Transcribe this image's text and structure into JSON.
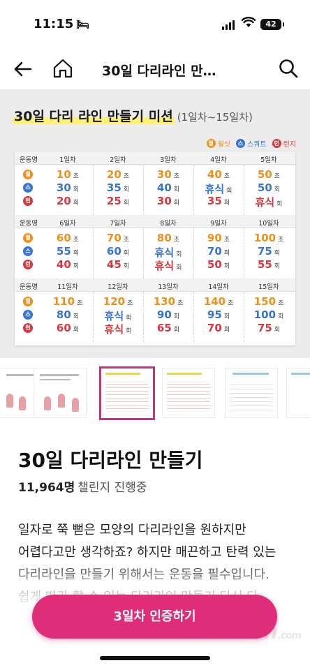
{
  "status_bar": {
    "time": "11:15",
    "battery": "42"
  },
  "nav": {
    "title": "30일 다리라인 만…"
  },
  "banner": {
    "title": "30일 다리 라인 만들기 미션",
    "subtitle": "(1일차~15일차)",
    "legend": [
      {
        "badge": "월",
        "label": "월싯",
        "color": "#f0901c"
      },
      {
        "badge": "스",
        "label": "스쿼트",
        "color": "#3a74d1"
      },
      {
        "badge": "런",
        "label": "런지",
        "color": "#d8383f"
      }
    ],
    "column_label": "운동명",
    "row_badges": [
      "월",
      "스",
      "런"
    ],
    "blocks": [
      {
        "days": [
          {
            "label": "1일차",
            "rows": [
              [
                "10",
                "초"
              ],
              [
                "30",
                "회"
              ],
              [
                "20",
                "회"
              ]
            ]
          },
          {
            "label": "2일차",
            "rows": [
              [
                "20",
                "초"
              ],
              [
                "35",
                "회"
              ],
              [
                "25",
                "회"
              ]
            ]
          },
          {
            "label": "3일차",
            "rows": [
              [
                "30",
                "초"
              ],
              [
                "40",
                "회"
              ],
              [
                "30",
                "회"
              ]
            ]
          },
          {
            "label": "4일차",
            "rows": [
              [
                "40",
                "초"
              ],
              [
                "휴식",
                "회"
              ],
              [
                "35",
                "회"
              ]
            ]
          },
          {
            "label": "5일차",
            "rows": [
              [
                "50",
                "초"
              ],
              [
                "50",
                "회"
              ],
              [
                "휴식",
                "회"
              ]
            ]
          }
        ]
      },
      {
        "days": [
          {
            "label": "6일차",
            "rows": [
              [
                "60",
                "초"
              ],
              [
                "55",
                "회"
              ],
              [
                "40",
                "회"
              ]
            ]
          },
          {
            "label": "7일차",
            "rows": [
              [
                "70",
                "초"
              ],
              [
                "60",
                "회"
              ],
              [
                "45",
                "회"
              ]
            ]
          },
          {
            "label": "8일차",
            "rows": [
              [
                "80",
                "초"
              ],
              [
                "휴식",
                "회"
              ],
              [
                "휴식",
                "회"
              ]
            ]
          },
          {
            "label": "9일차",
            "rows": [
              [
                "90",
                "초"
              ],
              [
                "70",
                "회"
              ],
              [
                "50",
                "회"
              ]
            ]
          },
          {
            "label": "10일차",
            "rows": [
              [
                "100",
                "초"
              ],
              [
                "75",
                "회"
              ],
              [
                "55",
                "회"
              ]
            ]
          }
        ]
      },
      {
        "days": [
          {
            "label": "11일차",
            "rows": [
              [
                "110",
                "초"
              ],
              [
                "80",
                "회"
              ],
              [
                "60",
                "회"
              ]
            ]
          },
          {
            "label": "12일차",
            "rows": [
              [
                "120",
                "초"
              ],
              [
                "휴식",
                "회"
              ],
              [
                "휴식",
                "회"
              ]
            ]
          },
          {
            "label": "13일차",
            "rows": [
              [
                "130",
                "초"
              ],
              [
                "90",
                "회"
              ],
              [
                "65",
                "회"
              ]
            ]
          },
          {
            "label": "14일차",
            "rows": [
              [
                "140",
                "초"
              ],
              [
                "95",
                "회"
              ],
              [
                "70",
                "회"
              ]
            ]
          },
          {
            "label": "15일차",
            "rows": [
              [
                "150",
                "초"
              ],
              [
                "100",
                "회"
              ],
              [
                "75",
                "회"
              ]
            ]
          }
        ]
      }
    ]
  },
  "content": {
    "title": "30일 다리라인 만들기",
    "participants": "11,964명",
    "participants_label": "챌린지 진행중",
    "description": "일자로 쭉 뻗은 모양의 다리라인을 원하지만 어렵다고만 생각하죠? 하지만 매끈하고 탄력 있는 다리라인을 만들기 위해서는 운동을 필수입니다. 쉽게 따라 할 수 있는 다리라인 만들기 다신 다…"
  },
  "cta": {
    "label": "3일차 인증하기"
  },
  "watermark": {
    "text": "dietshin",
    "suffix": ".com"
  }
}
